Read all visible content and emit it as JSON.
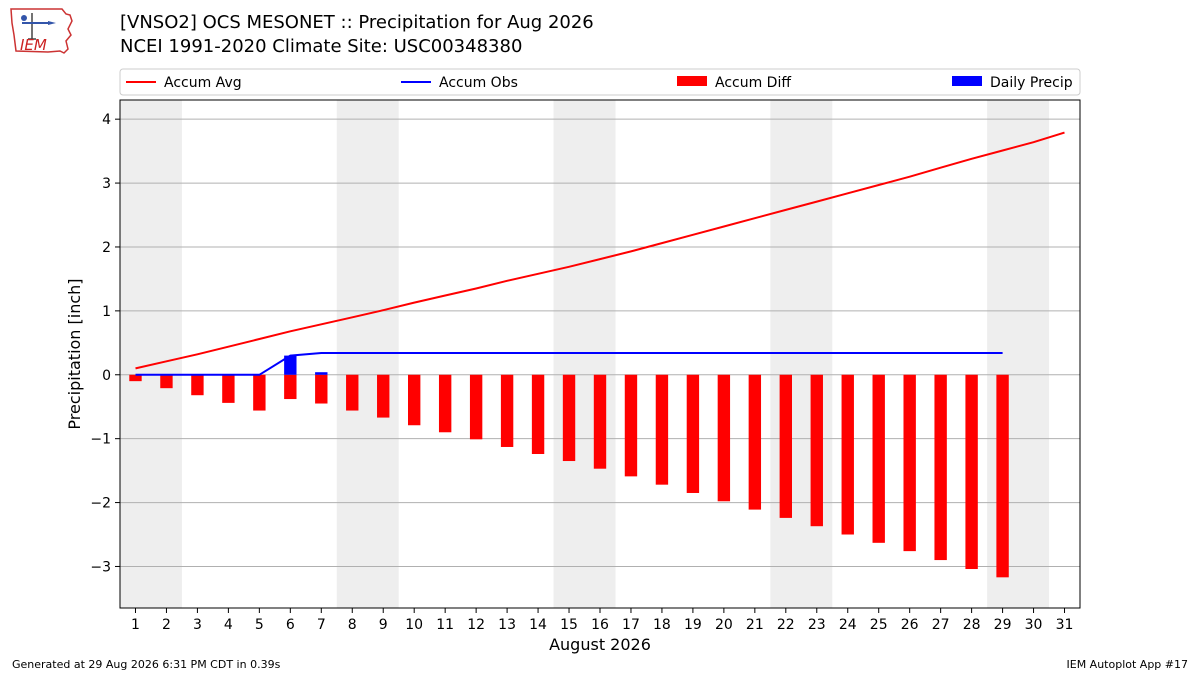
{
  "header": {
    "title_line1": "[VNSO2] OCS MESONET :: Precipitation for Aug 2026",
    "title_line2": "NCEI 1991-2020 Climate Site: USC00348380"
  },
  "logo": {
    "text": "IEM"
  },
  "footer": {
    "generated": "Generated at 29 Aug 2026 6:31 PM CDT in 0.39s",
    "app": "IEM Autoplot App #17"
  },
  "colors": {
    "avg": "#ff0000",
    "obs": "#0000ff",
    "diff": "#ff0000",
    "daily": "#0000ff",
    "weekend_shade": "#eeeeee",
    "grid": "#b0b0b0"
  },
  "chart_data": {
    "type": "bar",
    "xlabel": "August 2026",
    "ylabel": "Precipitation [inch]",
    "xlim": [
      0.5,
      31.5
    ],
    "ylim": [
      -3.65,
      4.3
    ],
    "yticks": [
      4,
      3,
      2,
      1,
      0,
      -1,
      -2,
      -3
    ],
    "ytick_labels": [
      "4",
      "3",
      "2",
      "1",
      "0",
      "−1",
      "−2",
      "−3"
    ],
    "days": [
      1,
      2,
      3,
      4,
      5,
      6,
      7,
      8,
      9,
      10,
      11,
      12,
      13,
      14,
      15,
      16,
      17,
      18,
      19,
      20,
      21,
      22,
      23,
      24,
      25,
      26,
      27,
      28,
      29,
      30,
      31
    ],
    "grid": true,
    "legend_placement": "top",
    "shaded_weekends": [
      [
        1,
        2
      ],
      [
        8,
        9
      ],
      [
        15,
        16
      ],
      [
        22,
        23
      ],
      [
        29,
        30
      ]
    ],
    "series": [
      {
        "name": "Accum Avg",
        "kind": "line",
        "x": [
          1,
          2,
          3,
          4,
          5,
          6,
          7,
          8,
          9,
          10,
          11,
          12,
          13,
          14,
          15,
          16,
          17,
          18,
          19,
          20,
          21,
          22,
          23,
          24,
          25,
          26,
          27,
          28,
          29,
          30,
          31
        ],
        "values": [
          0.1,
          0.21,
          0.32,
          0.44,
          0.56,
          0.68,
          0.79,
          0.9,
          1.01,
          1.13,
          1.24,
          1.35,
          1.47,
          1.58,
          1.69,
          1.81,
          1.93,
          2.06,
          2.19,
          2.32,
          2.45,
          2.58,
          2.71,
          2.84,
          2.97,
          3.1,
          3.24,
          3.38,
          3.51,
          3.64,
          3.79
        ]
      },
      {
        "name": "Accum Obs",
        "kind": "line",
        "x": [
          1,
          2,
          3,
          4,
          5,
          6,
          7,
          8,
          9,
          10,
          11,
          12,
          13,
          14,
          15,
          16,
          17,
          18,
          19,
          20,
          21,
          22,
          23,
          24,
          25,
          26,
          27,
          28,
          29
        ],
        "values": [
          0,
          0,
          0,
          0,
          0,
          0.3,
          0.34,
          0.34,
          0.34,
          0.34,
          0.34,
          0.34,
          0.34,
          0.34,
          0.34,
          0.34,
          0.34,
          0.34,
          0.34,
          0.34,
          0.34,
          0.34,
          0.34,
          0.34,
          0.34,
          0.34,
          0.34,
          0.34,
          0.34
        ]
      },
      {
        "name": "Accum Diff",
        "kind": "bar",
        "x": [
          1,
          2,
          3,
          4,
          5,
          6,
          7,
          8,
          9,
          10,
          11,
          12,
          13,
          14,
          15,
          16,
          17,
          18,
          19,
          20,
          21,
          22,
          23,
          24,
          25,
          26,
          27,
          28,
          29
        ],
        "values": [
          -0.1,
          -0.21,
          -0.32,
          -0.44,
          -0.56,
          -0.38,
          -0.45,
          -0.56,
          -0.67,
          -0.79,
          -0.9,
          -1.01,
          -1.13,
          -1.24,
          -1.35,
          -1.47,
          -1.59,
          -1.72,
          -1.85,
          -1.98,
          -2.11,
          -2.24,
          -2.37,
          -2.5,
          -2.63,
          -2.76,
          -2.9,
          -3.04,
          -3.17
        ]
      },
      {
        "name": "Daily Precip",
        "kind": "bar",
        "x": [
          6,
          7
        ],
        "values": [
          0.3,
          0.04
        ]
      }
    ]
  }
}
